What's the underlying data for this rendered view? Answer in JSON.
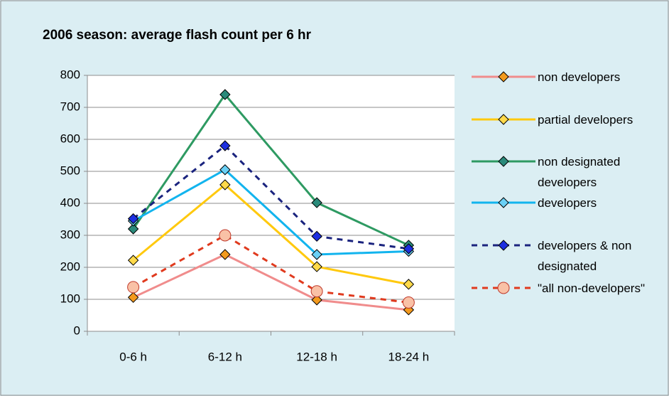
{
  "chart_data": {
    "type": "line",
    "title": "2006 season:  average flash count per 6 hr",
    "categories": [
      "0-6 h",
      "6-12 h",
      "12-18 h",
      "18-24 h"
    ],
    "series": [
      {
        "name": "non developers",
        "color": "#f08c8c",
        "marker": "diamond",
        "marker_color": "#f39a1e",
        "dash": false,
        "values": [
          106,
          240,
          98,
          67
        ]
      },
      {
        "name": "partial developers",
        "color": "#ffc90e",
        "marker": "diamond",
        "marker_color": "#ffd94a",
        "dash": false,
        "values": [
          222,
          458,
          202,
          147
        ]
      },
      {
        "name": "non designated developers",
        "color": "#2e9a62",
        "marker": "diamond",
        "marker_color": "#2a8a7a",
        "dash": false,
        "values": [
          320,
          740,
          402,
          269
        ]
      },
      {
        "name": "developers",
        "color": "#12b4ee",
        "marker": "diamond",
        "marker_color": "#6ad0f5",
        "dash": false,
        "values": [
          345,
          505,
          240,
          250
        ]
      },
      {
        "name": "developers & non designated",
        "color": "#1a237e",
        "marker": "diamond",
        "marker_color": "#1d2fe0",
        "dash": true,
        "values": [
          352,
          580,
          297,
          258
        ]
      },
      {
        "name": "\"all non-developers\"",
        "color": "#e03a1e",
        "marker": "circle",
        "marker_color": "#f9c1a6",
        "dash": true,
        "values": [
          138,
          300,
          125,
          90
        ]
      }
    ],
    "ylim": [
      0,
      800
    ],
    "yticks": [
      0,
      100,
      200,
      300,
      400,
      500,
      600,
      700,
      800
    ],
    "grid": true
  }
}
